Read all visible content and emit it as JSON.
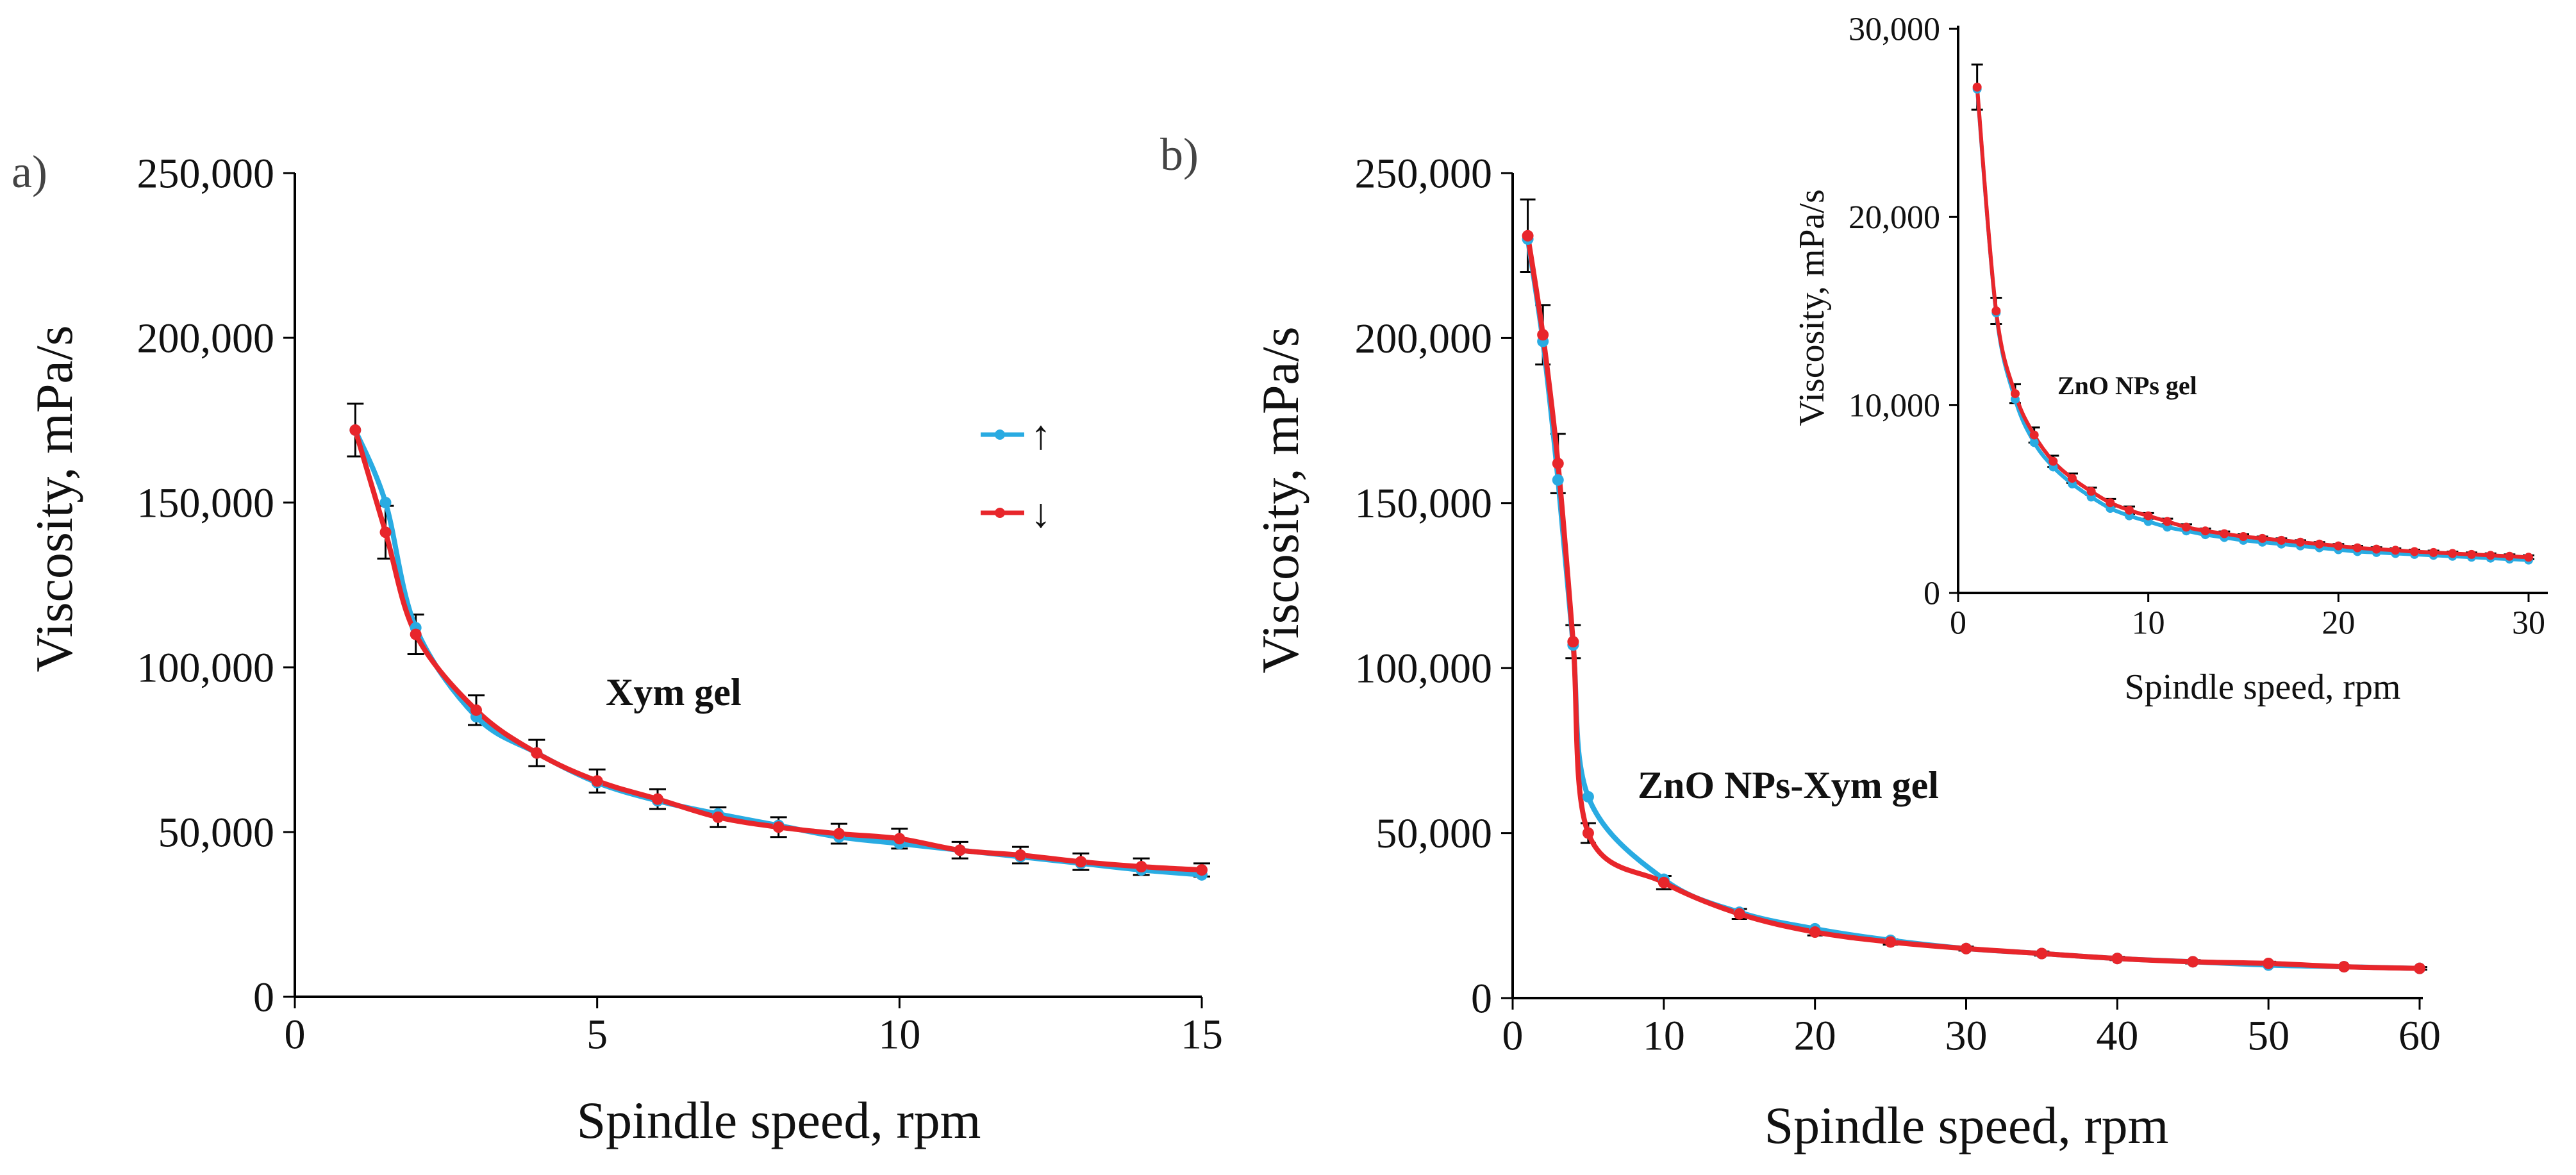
{
  "colors": {
    "up": "#29abe2",
    "down": "#e8262b",
    "axis": "#000000",
    "errbar": "#000000"
  },
  "chart_data": [
    {
      "id": "a",
      "type": "line",
      "panel_label": "a)",
      "annotation": "Xym gel",
      "xlabel": "Spindle speed, rpm",
      "ylabel": "Viscosity, mPa/s",
      "xlim": [
        0,
        15
      ],
      "ylim": [
        0,
        250000
      ],
      "xticks": [
        "0",
        "5",
        "10",
        "15"
      ],
      "yticks": [
        "0",
        "50,000",
        "100,000",
        "150,000",
        "200,000",
        "250,000"
      ],
      "legend": {
        "position": "right",
        "entries": [
          "↑",
          "↓"
        ]
      },
      "x": [
        1,
        1.5,
        2,
        3,
        4,
        5,
        6,
        7,
        8,
        9,
        10,
        11,
        12,
        13,
        14,
        15
      ],
      "series": [
        {
          "name": "↑",
          "values": [
            172000,
            150000,
            112000,
            85000,
            74000,
            65000,
            59500,
            55500,
            52000,
            48500,
            46500,
            44500,
            42500,
            40500,
            38500,
            37000
          ]
        },
        {
          "name": "↓",
          "values": [
            172000,
            141000,
            110000,
            87000,
            74000,
            65500,
            60000,
            54500,
            51500,
            49500,
            48000,
            44500,
            43000,
            41000,
            39500,
            38500
          ]
        }
      ],
      "error": [
        8000,
        8000,
        6000,
        4500,
        4000,
        3500,
        3000,
        3000,
        3000,
        3000,
        3000,
        2500,
        2500,
        2500,
        2500,
        2000
      ]
    },
    {
      "id": "b",
      "type": "line",
      "panel_label": "b)",
      "annotation": "ZnO NPs-Xym gel",
      "xlabel": "Spindle speed, rpm",
      "ylabel": "Viscosity, mPa/s",
      "xlim": [
        0,
        60
      ],
      "ylim": [
        0,
        250000
      ],
      "xticks": [
        "0",
        "10",
        "20",
        "30",
        "40",
        "50",
        "60"
      ],
      "yticks": [
        "0",
        "50,000",
        "100,000",
        "150,000",
        "200,000",
        "250,000"
      ],
      "x": [
        1,
        2,
        3,
        4,
        5,
        10,
        15,
        20,
        25,
        30,
        35,
        40,
        45,
        50,
        55,
        60
      ],
      "series": [
        {
          "name": "↑",
          "values": [
            230000,
            199000,
            157000,
            107000,
            61000,
            36000,
            26000,
            21000,
            17500,
            15000,
            13500,
            12000,
            11000,
            10000,
            9500,
            9000
          ]
        },
        {
          "name": "↓",
          "values": [
            231000,
            201000,
            162000,
            108000,
            50000,
            35000,
            25500,
            20000,
            17000,
            15000,
            13500,
            12000,
            11000,
            10500,
            9500,
            9000
          ]
        }
      ],
      "error": [
        11000,
        9000,
        9000,
        5000,
        3000,
        2000,
        1500,
        1000,
        800,
        600,
        600,
        500,
        500,
        500,
        400,
        400
      ]
    },
    {
      "id": "b-inset",
      "type": "line",
      "annotation": "ZnO NPs gel",
      "xlabel": "Spindle speed, rpm",
      "ylabel": "Viscosity, mPa/s",
      "xlim": [
        0,
        30
      ],
      "ylim": [
        0,
        30000
      ],
      "xticks": [
        "0",
        "10",
        "20",
        "30"
      ],
      "yticks": [
        "0",
        "10,000",
        "20,000",
        "30,000"
      ],
      "x": [
        1,
        2,
        3,
        4,
        5,
        6,
        7,
        8,
        9,
        10,
        11,
        12,
        13,
        14,
        15,
        16,
        17,
        18,
        19,
        20,
        21,
        22,
        23,
        24,
        25,
        26,
        27,
        28,
        29,
        30
      ],
      "series": [
        {
          "name": "↑",
          "values": [
            26800,
            14900,
            10300,
            8000,
            6700,
            5800,
            5100,
            4500,
            4100,
            3800,
            3500,
            3300,
            3100,
            2950,
            2800,
            2700,
            2600,
            2500,
            2400,
            2300,
            2200,
            2150,
            2100,
            2050,
            2000,
            1950,
            1900,
            1850,
            1800,
            1750
          ]
        },
        {
          "name": "↓",
          "values": [
            26900,
            15000,
            10600,
            8400,
            7000,
            6100,
            5400,
            4800,
            4400,
            4100,
            3800,
            3500,
            3300,
            3150,
            3000,
            2900,
            2800,
            2700,
            2600,
            2500,
            2400,
            2330,
            2270,
            2200,
            2150,
            2100,
            2050,
            2000,
            1950,
            1900
          ]
        }
      ],
      "error": [
        1200,
        700,
        500,
        400,
        300,
        250,
        200,
        200,
        200,
        150,
        150,
        150,
        120,
        120,
        120,
        100,
        100,
        100,
        100,
        100,
        100,
        100,
        100,
        100,
        100,
        100,
        100,
        100,
        100,
        100
      ]
    }
  ]
}
